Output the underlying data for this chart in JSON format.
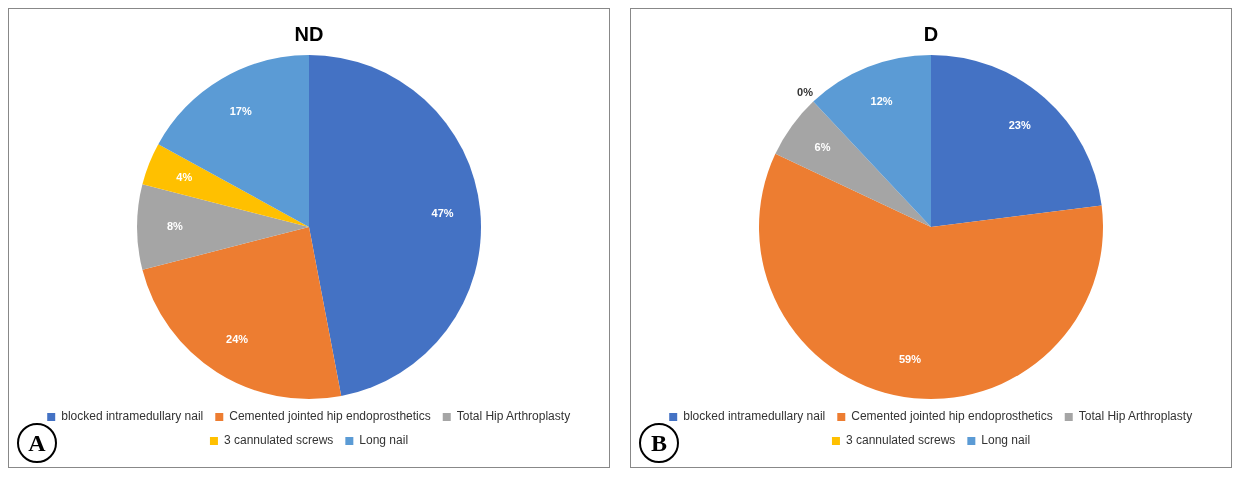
{
  "chart_data": [
    {
      "type": "pie",
      "title": "ND",
      "categories": [
        "blocked intramedullary nail",
        "Cemented jointed hip endoprosthetics",
        "Total Hip Arthroplasty",
        "3 cannulated screws",
        "Long nail"
      ],
      "values": [
        47,
        24,
        8,
        4,
        17
      ],
      "colors": [
        "#4472c4",
        "#ed7d31",
        "#a5a5a5",
        "#ffc000",
        "#5b9bd5"
      ],
      "value_labels": [
        "47%",
        "24%",
        "8%",
        "4%",
        "17%"
      ],
      "legend": "bottom",
      "annotations": [
        "A"
      ]
    },
    {
      "type": "pie",
      "title": "D",
      "categories": [
        "blocked intramedullary nail",
        "Cemented jointed hip endoprosthetics",
        "Total Hip Arthroplasty",
        "3 cannulated screws",
        "Long nail"
      ],
      "values": [
        23,
        59,
        6,
        0,
        12
      ],
      "colors": [
        "#4472c4",
        "#ed7d31",
        "#a5a5a5",
        "#ffc000",
        "#5b9bd5"
      ],
      "value_labels": [
        "23%",
        "59%",
        "6%",
        "0%",
        "12%"
      ],
      "legend": "bottom",
      "annotations": [
        "B"
      ]
    }
  ]
}
